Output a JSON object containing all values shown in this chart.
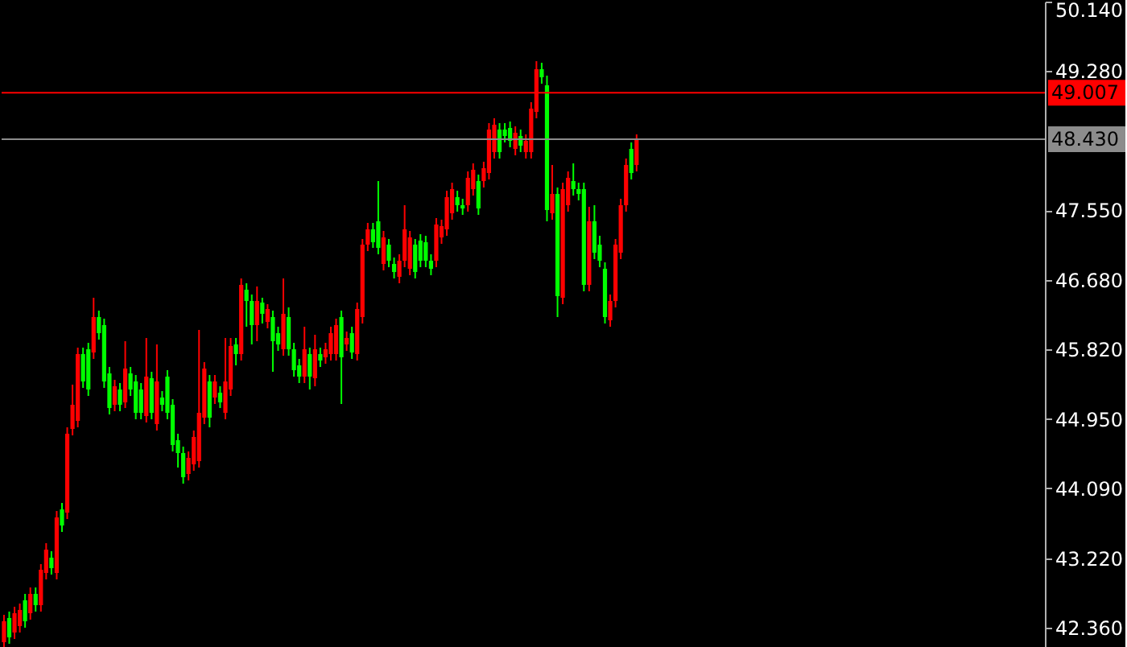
{
  "chart_data": {
    "type": "candlestick",
    "categories": [
      null,
      null,
      null,
      null,
      null,
      null,
      null,
      null,
      null,
      null,
      null,
      null,
      null,
      null,
      null,
      null,
      null,
      null,
      null,
      null,
      null,
      null,
      null,
      null,
      null,
      null,
      null,
      null,
      null,
      null,
      null,
      null,
      null,
      null,
      null,
      null,
      null,
      null,
      null,
      null,
      null,
      null,
      null,
      null,
      null,
      null,
      null,
      null,
      null,
      null,
      null,
      null,
      null,
      null,
      null,
      null,
      null,
      null,
      null,
      null,
      null,
      null,
      null,
      null,
      null,
      null,
      null,
      null,
      null,
      null,
      null,
      null,
      null,
      null,
      null,
      null,
      null,
      null,
      null,
      null,
      null,
      null,
      null,
      null,
      null,
      null,
      null,
      null,
      null,
      null,
      null,
      null,
      null,
      null,
      null,
      null,
      null,
      null,
      null,
      null,
      null,
      null,
      null,
      null,
      null,
      null,
      null,
      null,
      null,
      null,
      null,
      null,
      null,
      null,
      null,
      null,
      null,
      null,
      null,
      null,
      null,
      null,
      null,
      null,
      null,
      null,
      null,
      null,
      null,
      null,
      null,
      null,
      null,
      null,
      null,
      null,
      null,
      null,
      null,
      null,
      null,
      null,
      null,
      null,
      null,
      null,
      null,
      null,
      null,
      null,
      null,
      null,
      null,
      null,
      null,
      null,
      null,
      null,
      null,
      null,
      null,
      null,
      null,
      null,
      null,
      null,
      null,
      null,
      null,
      null,
      null,
      null,
      null,
      null,
      null,
      null,
      null,
      null,
      null,
      null,
      null,
      null,
      null,
      null,
      null,
      null,
      null,
      null,
      null,
      null,
      null,
      null,
      null,
      null,
      null,
      null,
      null,
      null
    ],
    "ohlc": [
      [
        42.18,
        42.52,
        42.1,
        42.44
      ],
      [
        42.48,
        42.56,
        42.16,
        42.24
      ],
      [
        42.3,
        42.62,
        42.22,
        42.54
      ],
      [
        42.38,
        42.66,
        42.3,
        42.58
      ],
      [
        42.7,
        42.78,
        42.36,
        42.44
      ],
      [
        42.54,
        42.86,
        42.46,
        42.78
      ],
      [
        42.78,
        42.86,
        42.56,
        42.64
      ],
      [
        42.64,
        43.15,
        42.56,
        43.08
      ],
      [
        43.04,
        43.41,
        42.96,
        43.33
      ],
      [
        43.23,
        43.31,
        43.02,
        43.1
      ],
      [
        43.04,
        43.81,
        42.96,
        43.73
      ],
      [
        43.83,
        43.91,
        43.55,
        43.63
      ],
      [
        43.79,
        44.85,
        43.71,
        44.77
      ],
      [
        44.83,
        45.38,
        44.75,
        45.13
      ],
      [
        44.93,
        45.84,
        44.85,
        45.76
      ],
      [
        45.76,
        45.84,
        45.34,
        45.42
      ],
      [
        45.82,
        45.9,
        45.24,
        45.32
      ],
      [
        45.78,
        46.46,
        45.7,
        46.22
      ],
      [
        46.22,
        46.3,
        45.94,
        46.02
      ],
      [
        46.12,
        46.2,
        45.34,
        45.42
      ],
      [
        45.52,
        45.6,
        45.01,
        45.09
      ],
      [
        45.13,
        45.44,
        45.05,
        45.36
      ],
      [
        45.32,
        45.4,
        45.05,
        45.13
      ],
      [
        45.16,
        45.92,
        45.09,
        45.58
      ],
      [
        45.52,
        45.6,
        45.24,
        45.32
      ],
      [
        45.42,
        45.5,
        44.95,
        45.03
      ],
      [
        45.32,
        45.4,
        44.95,
        45.03
      ],
      [
        44.99,
        45.96,
        44.91,
        45.48
      ],
      [
        45.46,
        45.54,
        44.95,
        45.03
      ],
      [
        44.89,
        45.88,
        44.81,
        45.42
      ],
      [
        45.22,
        45.3,
        45.05,
        45.13
      ],
      [
        45.48,
        45.56,
        44.95,
        45.03
      ],
      [
        45.13,
        45.2,
        44.55,
        44.63
      ],
      [
        44.69,
        44.77,
        44.35,
        44.53
      ],
      [
        44.53,
        44.61,
        44.15,
        44.23
      ],
      [
        44.27,
        44.55,
        44.19,
        44.47
      ],
      [
        44.39,
        44.81,
        44.31,
        44.73
      ],
      [
        44.43,
        46.06,
        44.35,
        45.03
      ],
      [
        44.97,
        45.66,
        44.89,
        45.58
      ],
      [
        45.42,
        45.5,
        44.85,
        44.97
      ],
      [
        45.22,
        45.5,
        45.14,
        45.42
      ],
      [
        45.28,
        45.36,
        45.09,
        45.16
      ],
      [
        45.03,
        45.96,
        44.95,
        45.42
      ],
      [
        45.32,
        45.96,
        45.24,
        45.86
      ],
      [
        45.88,
        45.96,
        45.62,
        45.76
      ],
      [
        45.76,
        46.7,
        45.68,
        46.62
      ],
      [
        46.56,
        46.64,
        46.1,
        46.42
      ],
      [
        46.42,
        46.5,
        45.88,
        46.12
      ],
      [
        46.12,
        46.6,
        45.92,
        46.42
      ],
      [
        46.4,
        46.46,
        46.14,
        46.26
      ],
      [
        46.16,
        46.38,
        46.08,
        46.32
      ],
      [
        46.22,
        46.3,
        45.54,
        45.92
      ],
      [
        46.02,
        46.1,
        45.8,
        45.88
      ],
      [
        45.82,
        46.7,
        45.74,
        46.26
      ],
      [
        46.22,
        46.34,
        45.74,
        45.82
      ],
      [
        45.82,
        45.9,
        45.48,
        45.56
      ],
      [
        45.62,
        45.7,
        45.4,
        45.48
      ],
      [
        45.48,
        46.1,
        45.4,
        45.82
      ],
      [
        45.76,
        45.84,
        45.32,
        45.48
      ],
      [
        45.46,
        46.0,
        45.36,
        45.82
      ],
      [
        45.76,
        45.84,
        45.6,
        45.68
      ],
      [
        45.72,
        45.9,
        45.64,
        45.82
      ],
      [
        45.76,
        46.1,
        45.68,
        46.02
      ],
      [
        45.76,
        46.2,
        45.68,
        46.12
      ],
      [
        46.22,
        46.3,
        45.14,
        45.72
      ],
      [
        45.88,
        46.04,
        45.8,
        45.96
      ],
      [
        46.02,
        46.1,
        45.7,
        45.78
      ],
      [
        45.76,
        46.4,
        45.68,
        46.32
      ],
      [
        46.22,
        47.19,
        46.14,
        47.12
      ],
      [
        47.12,
        47.39,
        47.04,
        47.31
      ],
      [
        47.31,
        47.39,
        47.08,
        47.15
      ],
      [
        47.41,
        47.91,
        47.0,
        47.08
      ],
      [
        46.88,
        47.29,
        46.8,
        47.21
      ],
      [
        47.12,
        47.19,
        46.84,
        46.92
      ],
      [
        46.88,
        46.96,
        46.7,
        46.78
      ],
      [
        46.72,
        47.0,
        46.64,
        46.92
      ],
      [
        46.92,
        47.61,
        46.84,
        47.31
      ],
      [
        46.82,
        47.29,
        46.74,
        47.21
      ],
      [
        47.12,
        47.19,
        46.7,
        46.78
      ],
      [
        47.17,
        47.25,
        46.84,
        46.92
      ],
      [
        47.15,
        47.23,
        46.84,
        46.92
      ],
      [
        46.92,
        47.0,
        46.74,
        46.82
      ],
      [
        46.92,
        47.45,
        46.84,
        47.37
      ],
      [
        47.21,
        47.43,
        47.13,
        47.35
      ],
      [
        47.31,
        47.79,
        47.23,
        47.71
      ],
      [
        47.51,
        47.89,
        47.43,
        47.81
      ],
      [
        47.71,
        47.79,
        47.53,
        47.61
      ],
      [
        47.61,
        47.69,
        47.49,
        47.57
      ],
      [
        47.61,
        48.03,
        47.53,
        47.95
      ],
      [
        47.81,
        48.13,
        47.73,
        48.05
      ],
      [
        47.91,
        47.99,
        47.49,
        47.57
      ],
      [
        47.91,
        48.15,
        47.83,
        48.07
      ],
      [
        48.01,
        48.63,
        47.93,
        48.55
      ],
      [
        48.27,
        48.69,
        48.19,
        48.61
      ],
      [
        48.55,
        48.63,
        48.19,
        48.27
      ],
      [
        48.55,
        48.63,
        48.39,
        48.47
      ],
      [
        48.57,
        48.65,
        48.33,
        48.41
      ],
      [
        48.31,
        48.59,
        48.23,
        48.51
      ],
      [
        48.47,
        48.55,
        48.27,
        48.35
      ],
      [
        48.27,
        48.49,
        48.19,
        48.41
      ],
      [
        48.27,
        48.89,
        48.19,
        48.81
      ],
      [
        48.77,
        49.4,
        48.69,
        49.3
      ],
      [
        49.3,
        49.38,
        49.12,
        49.2
      ],
      [
        49.1,
        49.22,
        47.41,
        47.55
      ],
      [
        47.51,
        48.11,
        47.43,
        47.75
      ],
      [
        47.75,
        47.83,
        46.22,
        46.48
      ],
      [
        46.46,
        47.89,
        46.38,
        47.81
      ],
      [
        47.61,
        48.03,
        47.53,
        47.95
      ],
      [
        47.91,
        48.13,
        47.73,
        47.81
      ],
      [
        47.81,
        47.89,
        47.67,
        47.75
      ],
      [
        47.81,
        47.89,
        46.54,
        46.62
      ],
      [
        46.62,
        47.59,
        46.54,
        47.41
      ],
      [
        47.41,
        47.61,
        46.94,
        47.02
      ],
      [
        47.12,
        47.23,
        46.84,
        46.92
      ],
      [
        46.82,
        46.9,
        46.14,
        46.22
      ],
      [
        46.18,
        46.5,
        46.1,
        46.42
      ],
      [
        46.42,
        47.19,
        46.34,
        47.12
      ],
      [
        47.02,
        47.69,
        46.94,
        47.61
      ],
      [
        47.61,
        48.19,
        47.53,
        48.11
      ],
      [
        48.31,
        48.39,
        47.93,
        48.01
      ],
      [
        48.11,
        48.49,
        48.03,
        48.43
      ],
      null,
      null,
      null,
      null,
      null,
      null,
      null,
      null,
      null,
      null,
      null,
      null,
      null,
      null,
      null,
      null,
      null,
      null,
      null,
      null,
      null,
      null,
      null,
      null,
      null,
      null,
      null,
      null,
      null,
      null,
      null,
      null,
      null,
      null,
      null,
      null,
      null,
      null,
      null,
      null,
      null,
      null,
      null,
      null,
      null,
      null,
      null,
      null,
      null,
      null,
      null,
      null,
      null,
      null,
      null,
      null,
      null,
      null,
      null,
      null,
      null,
      null,
      null,
      null,
      null,
      null,
      null,
      null,
      null,
      null,
      null,
      null,
      null,
      null,
      null,
      null,
      null
    ],
    "colors": [
      "#ff0000",
      "#00ff00",
      "#ff0000",
      "#ff0000",
      "#00ff00",
      "#ff0000",
      "#00ff00",
      "#ff0000",
      "#ff0000",
      "#00ff00",
      "#ff0000",
      "#00ff00",
      "#ff0000",
      "#ff0000",
      "#ff0000",
      "#00ff00",
      "#00ff00",
      "#ff0000",
      "#00ff00",
      "#00ff00",
      "#00ff00",
      "#ff0000",
      "#00ff00",
      "#ff0000",
      "#00ff00",
      "#00ff00",
      "#00ff00",
      "#ff0000",
      "#00ff00",
      "#ff0000",
      "#00ff00",
      "#00ff00",
      "#00ff00",
      "#00ff00",
      "#00ff00",
      "#ff0000",
      "#ff0000",
      "#ff0000",
      "#ff0000",
      "#00ff00",
      "#ff0000",
      "#00ff00",
      "#ff0000",
      "#ff0000",
      "#00ff00",
      "#ff0000",
      "#00ff00",
      "#00ff00",
      "#ff0000",
      "#00ff00",
      "#ff0000",
      "#00ff00",
      "#00ff00",
      "#ff0000",
      "#00ff00",
      "#00ff00",
      "#00ff00",
      "#ff0000",
      "#00ff00",
      "#ff0000",
      "#00ff00",
      "#ff0000",
      "#ff0000",
      "#ff0000",
      "#00ff00",
      "#ff0000",
      "#00ff00",
      "#ff0000",
      "#ff0000",
      "#ff0000",
      "#00ff00",
      "#00ff00",
      "#ff0000",
      "#00ff00",
      "#00ff00",
      "#ff0000",
      "#ff0000",
      "#ff0000",
      "#00ff00",
      "#00ff00",
      "#00ff00",
      "#00ff00",
      "#ff0000",
      "#ff0000",
      "#ff0000",
      "#ff0000",
      "#00ff00",
      "#00ff00",
      "#ff0000",
      "#ff0000",
      "#00ff00",
      "#ff0000",
      "#ff0000",
      "#ff0000",
      "#00ff00",
      "#00ff00",
      "#00ff00",
      "#ff0000",
      "#00ff00",
      "#ff0000",
      "#ff0000",
      "#ff0000",
      "#00ff00",
      "#00ff00",
      "#ff0000",
      "#00ff00",
      "#ff0000",
      "#ff0000",
      "#00ff00",
      "#00ff00",
      "#00ff00",
      "#ff0000",
      "#00ff00",
      "#00ff00",
      "#00ff00",
      "#ff0000",
      "#ff0000",
      "#ff0000",
      "#ff0000",
      "#00ff00",
      "#ff0000",
      null,
      null,
      null,
      null,
      null,
      null,
      null,
      null,
      null,
      null,
      null,
      null,
      null,
      null,
      null,
      null,
      null,
      null,
      null,
      null,
      null,
      null,
      null,
      null,
      null,
      null,
      null,
      null,
      null,
      null,
      null,
      null,
      null,
      null,
      null,
      null,
      null,
      null,
      null,
      null,
      null,
      null,
      null,
      null,
      null,
      null,
      null,
      null,
      null,
      null,
      null,
      null,
      null,
      null,
      null,
      null,
      null,
      null,
      null,
      null,
      null,
      null,
      null,
      null,
      null,
      null,
      null,
      null,
      null,
      null,
      null,
      null,
      null,
      null,
      null,
      null,
      null
    ],
    "ylim": [
      42.1,
      50.14
    ],
    "yticks": [
      {
        "value": 42.36,
        "label": "42.360"
      },
      {
        "value": 43.22,
        "label": "43.220"
      },
      {
        "value": 44.09,
        "label": "44.090"
      },
      {
        "value": 44.95,
        "label": "44.950"
      },
      {
        "value": 45.82,
        "label": "45.820"
      },
      {
        "value": 46.68,
        "label": "46.680"
      },
      {
        "value": 47.55,
        "label": "47.550"
      },
      {
        "value": 49.28,
        "label": "49.280"
      },
      {
        "value": 50.14,
        "label": "50.140"
      }
    ],
    "ref_lines": [
      {
        "axis": "y",
        "value": 49.007,
        "label": "49.007",
        "color": "#ff0000"
      },
      {
        "axis": "y",
        "value": 48.43,
        "label": "48.430",
        "color": "#8c8c8c"
      }
    ],
    "tick_labels": "y"
  }
}
